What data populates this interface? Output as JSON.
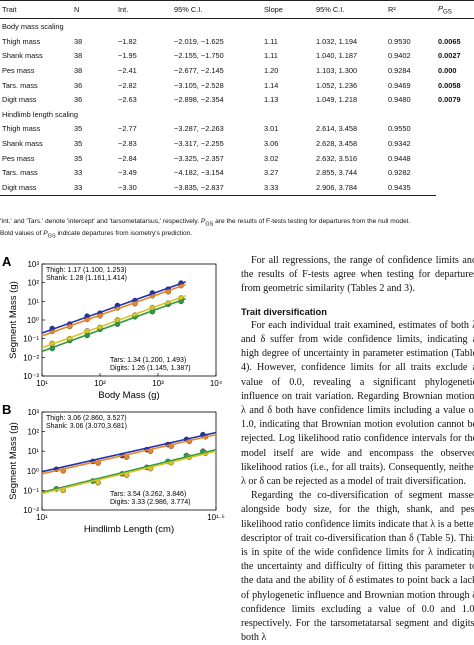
{
  "table": {
    "header": [
      "Trait",
      "N",
      "Int.",
      "95% C.I.",
      "Slope",
      "95% C.I.",
      "R²",
      {
        "text": "P",
        "sub": "GS"
      }
    ],
    "sections": [
      {
        "title": "Body mass scaling",
        "bold_p": true,
        "rows": [
          [
            "Thigh mass",
            "38",
            "−1.82",
            "−2.019, −1.625",
            "1.11",
            "1.032, 1.194",
            "0.9530",
            "0.0065"
          ],
          [
            "Shank mass",
            "38",
            "−1.95",
            "−2.155, −1.750",
            "1.11",
            "1.040, 1.187",
            "0.9402",
            "0.0027"
          ],
          [
            "Pes mass",
            "38",
            "−2.41",
            "−2.677, −2.145",
            "1.20",
            "1.103, 1.300",
            "0.9284",
            "0.000"
          ],
          [
            "Tars. mass",
            "36",
            "−2.82",
            "−3.105, −2.528",
            "1.14",
            "1.052, 1.236",
            "0.9469",
            "0.0058"
          ],
          [
            "Digit mass",
            "36",
            "−2.63",
            "−2.898, −2.354",
            "1.13",
            "1.049, 1.218",
            "0.9480",
            "0.0079"
          ]
        ]
      },
      {
        "title": "Hindlimb length scaling",
        "bold_p": false,
        "rows": [
          [
            "Thigh mass",
            "35",
            "−2.77",
            "−3.287, −2.263",
            "3.01",
            "2.614, 3.458",
            "0.9550"
          ],
          [
            "Shank mass",
            "35",
            "−2.83",
            "−3.317, −2.255",
            "3.06",
            "2.628, 3.458",
            "0.9342"
          ],
          [
            "Pes mass",
            "35",
            "−2.84",
            "−3.325, −2.357",
            "3.02",
            "2.632, 3.516",
            "0.9448"
          ],
          [
            "Tars. mass",
            "33",
            "−3.49",
            "−4.182, −3.154",
            "3.27",
            "2.855, 3.744",
            "0.9282"
          ],
          [
            "Digit mass",
            "33",
            "−3.30",
            "−3.835, −2.837",
            "3.33",
            "2.906, 3.784",
            "0.9435"
          ]
        ]
      }
    ],
    "note": {
      "before": "'Int.' and 'Tars.' denote 'intercept' and 'tarsometatarsus,' respectively. ",
      "p": "P",
      "sub": "GS",
      "after": " are the results of F-tests testing for departures from the null model."
    },
    "note2": {
      "before": "Bold values of ",
      "p": "P",
      "sub": "GS",
      "after": " indicate departures from isometry's prediction."
    }
  },
  "figure": {
    "panels": [
      {
        "letter": "A",
        "y_label": "Segment Mass (g)",
        "x_label": "Body Mass (g)",
        "log": true,
        "xlim": [
          10,
          10000
        ],
        "ylim": [
          0.001,
          1000
        ],
        "xticks": [
          {
            "value": 10,
            "label": "10¹"
          },
          {
            "value": 100,
            "label": "10²"
          },
          {
            "value": 1000,
            "label": "10³"
          },
          {
            "value": 10000,
            "label": "10⁴"
          }
        ],
        "yticks": [
          {
            "value": 0.001,
            "label": "10⁻³"
          },
          {
            "value": 0.01,
            "label": "10⁻²"
          },
          {
            "value": 0.1,
            "label": "10⁻¹"
          },
          {
            "value": 1,
            "label": "10⁰"
          },
          {
            "value": 10,
            "label": "10¹"
          },
          {
            "value": 100,
            "label": "10²"
          },
          {
            "value": 1000,
            "label": "10³"
          }
        ],
        "annotations_top": [
          "Thigh: 1.17 (1.100, 1.253)",
          "Shank: 1.28 (1.161,1.414)"
        ],
        "annotations_bottom": [
          "Tars: 1.34 (1.200, 1.493)",
          "Digits: 1.26 (1.145, 1.387)"
        ],
        "series": [
          {
            "color": "#2233aa",
            "x": [
              15,
              30,
              60,
              100,
              200,
              400,
              800,
              1500,
              2500
            ],
            "values": [
              0.35,
              0.6,
              1.6,
              2.3,
              6,
              11,
              28,
              45,
              95
            ],
            "fit_x": [
              10,
              3000
            ],
            "fit_y": [
              0.2,
              110
            ]
          },
          {
            "color": "#e8862a",
            "x": [
              15,
              30,
              60,
              100,
              200,
              400,
              800,
              1500,
              2500
            ],
            "values": [
              0.25,
              0.45,
              1.1,
              1.7,
              4.5,
              7.5,
              20,
              33,
              70
            ],
            "fit_x": [
              10,
              3000
            ],
            "fit_y": [
              0.14,
              80
            ]
          },
          {
            "color": "#2e9a3c",
            "x": [
              15,
              30,
              60,
              100,
              200,
              400,
              800,
              1500,
              2500
            ],
            "values": [
              0.03,
              0.08,
              0.15,
              0.32,
              0.6,
              1.5,
              2.8,
              7,
              10
            ],
            "fit_x": [
              10,
              3000
            ],
            "fit_y": [
              0.021,
              14
            ]
          },
          {
            "color": "#d9c225",
            "x": [
              15,
              30,
              60,
              100,
              200,
              400,
              800,
              1500,
              2500
            ],
            "values": [
              0.055,
              0.1,
              0.26,
              0.4,
              1,
              1.8,
              4.6,
              8,
              15
            ],
            "fit_x": [
              10,
              3000
            ],
            "fit_y": [
              0.032,
              20
            ]
          }
        ]
      },
      {
        "letter": "B",
        "y_label": "Segment Mass (g)",
        "x_label": "Hindlimb Length (cm)",
        "log": true,
        "xlim": [
          10,
          31.62
        ],
        "ylim": [
          0.01,
          1000
        ],
        "xticks": [
          {
            "value": 10,
            "label": "10¹"
          },
          {
            "value": 31.62,
            "label": "10¹·⁵"
          }
        ],
        "yticks": [
          {
            "value": 0.01,
            "label": "10⁻²"
          },
          {
            "value": 0.1,
            "label": "10⁻¹"
          },
          {
            "value": 1,
            "label": "10⁰"
          },
          {
            "value": 10,
            "label": "10¹"
          },
          {
            "value": 100,
            "label": "10²"
          },
          {
            "value": 1000,
            "label": "10³"
          }
        ],
        "annotations_top": [
          "Thigh: 3.06 (2.860, 3.527)",
          "Shank: 3.06 (3.070,3.681)"
        ],
        "annotations_bottom": [
          "Tars: 3.54 (3.262, 3.846)",
          "Digits: 3.33 (2.986, 3.774)"
        ],
        "series": [
          {
            "color": "#2233aa",
            "x": [
              11,
              14,
              17,
              20,
              23,
              26,
              29
            ],
            "values": [
              1.2,
              3,
              6,
              12,
              22,
              40,
              70
            ],
            "fit_x": [
              10,
              31.62
            ],
            "fit_y": [
              0.9,
              90
            ]
          },
          {
            "color": "#e8862a",
            "x": [
              11.5,
              14.5,
              17.5,
              20.5,
              23.5,
              26.5,
              29.5
            ],
            "values": [
              1,
              2.5,
              5,
              10,
              18,
              32,
              55
            ],
            "fit_x": [
              10,
              31.62
            ],
            "fit_y": [
              0.7,
              70
            ]
          },
          {
            "color": "#2e9a3c",
            "x": [
              11,
              14,
              17,
              20,
              23,
              26,
              29
            ],
            "values": [
              0.12,
              0.3,
              0.7,
              1.5,
              3,
              6,
              10
            ],
            "fit_x": [
              10,
              31.62
            ],
            "fit_y": [
              0.08,
              12
            ]
          },
          {
            "color": "#d9c225",
            "x": [
              11.5,
              14.5,
              17.5,
              20.5,
              23.5,
              26.5,
              29.5
            ],
            "values": [
              0.1,
              0.25,
              0.6,
              1.3,
              2.6,
              5,
              8
            ],
            "fit_x": [
              10,
              31.62
            ],
            "fit_y": [
              0.07,
              10
            ]
          }
        ]
      }
    ]
  },
  "body": {
    "p1": "For all regressions, the range of confidence limits and the results of F-tests agree when testing for departures from geometric similarity (Tables 2 and 3).",
    "heading": "Trait diversification",
    "p2": "For each individual trait examined, estimates of both λ and δ suffer from wide confidence limits, indicating a high degree of uncertainty in parameter estimation (Table 4). However, confidence limits for all traits exclude a value of 0.0, revealing a significant phylogenetic influence on trait variation. Regarding Brownian motion, λ and δ both have confidence limits including a value of 1.0, indicating that Brownian motion evolution cannot be rejected. Log likelihood ratio confidence intervals for the model itself are wide and encompass the observed likelihood ratios (i.e., for all traits). Consequently, neither λ or δ can be rejected as a model of trait diversification.",
    "p3": "Regarding the co-diversification of segment masses alongside body size, for the thigh, shank, and pes, likelihood ratio confidence limits indicate that λ is a better descriptor of trait co-diversification than δ (Table 5). This is in spite of the wide confidence limits for λ indicating the uncertainty and difficulty of fitting this parameter to the data and the ability of δ estimates to point back a lack of phylogenetic influence and Brownian motion through δ confidence limits excluding a value of 0.0 and 1.0, respectively. For the tarsometatarsal segment and digits, both λ"
  }
}
